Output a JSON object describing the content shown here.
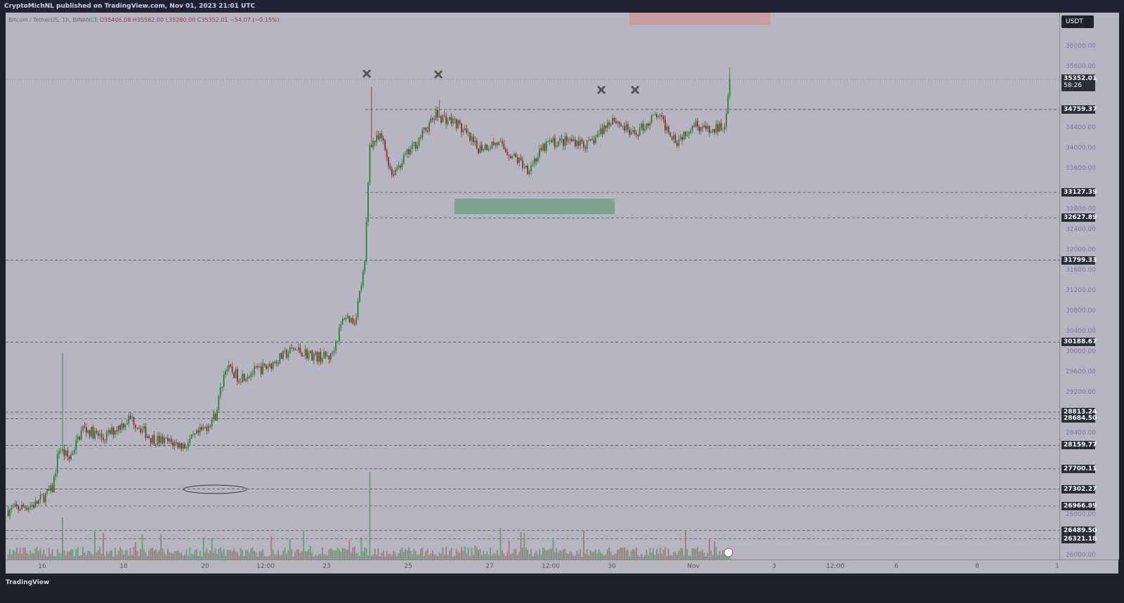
{
  "header": {
    "published": "CryptoMichNL published on TradingView.com, Nov 01, 2023 21:01 UTC"
  },
  "legend": {
    "symbol": "Bitcoin / TetherUS, 1h, BINANCE",
    "open": "O35406.08",
    "high": "H35582.00",
    "low": "L35280.00",
    "close": "C35352.01",
    "change": "−54.07 (−0.15%)"
  },
  "footer": {
    "logo": "TradingView"
  },
  "colors": {
    "up": "#2e7d32",
    "down": "#8b2a2a",
    "background": "#b6b6c2",
    "zone_green": "#6f9f7f",
    "zone_red": "#c99a9f"
  },
  "chart_data": {
    "type": "candlestick",
    "currency_label": "USDT",
    "interval": "1h",
    "ylim": [
      26000,
      36000
    ],
    "y_ticks": [
      "36000.00",
      "35600.00",
      "34400.00",
      "34000.00",
      "33600.00",
      "32800.00",
      "32400.00",
      "32000.00",
      "31600.00",
      "31200.00",
      "30800.00",
      "30400.00",
      "30000.00",
      "29600.00",
      "29200.00",
      "28400.00",
      "26800.00",
      "26000.00"
    ],
    "x_ticks": [
      "16",
      "18",
      "20",
      "12:00",
      "23",
      "25",
      "27",
      "12:00",
      "30",
      "Nov",
      "3",
      "12:00",
      "6",
      "8",
      "1"
    ],
    "last_price": {
      "value": "35352.01",
      "countdown": "58:26"
    },
    "levels": [
      "34759.37",
      "33127.39",
      "32627.89",
      "31799.33",
      "30188.67",
      "28813.24",
      "28684.50",
      "28159.77",
      "27700.11",
      "27302.27",
      "26966.89",
      "26489.50",
      "26321.18"
    ],
    "approx_price_path": [
      [
        "10-15 03",
        26880
      ],
      [
        "10-15 20",
        27000
      ],
      [
        "10-16 06",
        27300
      ],
      [
        "10-16 10",
        28100
      ],
      [
        "10-16 16",
        27900
      ],
      [
        "10-17 00",
        28500
      ],
      [
        "10-17 12",
        28300
      ],
      [
        "10-18 04",
        28700
      ],
      [
        "10-18 16",
        28300
      ],
      [
        "10-19 12",
        28150
      ],
      [
        "10-20 00",
        28500
      ],
      [
        "10-20 06",
        28750
      ],
      [
        "10-20 12",
        29700
      ],
      [
        "10-20 20",
        29500
      ],
      [
        "10-21 12",
        29700
      ],
      [
        "10-22 04",
        30050
      ],
      [
        "10-22 18",
        29900
      ],
      [
        "10-23 02",
        29900
      ],
      [
        "10-23 10",
        30700
      ],
      [
        "10-23 16",
        30600
      ],
      [
        "10-23 22",
        31700
      ],
      [
        "10-24 01",
        34100
      ],
      [
        "10-24 08",
        34200
      ],
      [
        "10-24 14",
        33500
      ],
      [
        "10-25 02",
        34000
      ],
      [
        "10-25 16",
        34650
      ],
      [
        "10-26 04",
        34500
      ],
      [
        "10-26 16",
        34000
      ],
      [
        "10-27 04",
        34100
      ],
      [
        "10-27 22",
        33600
      ],
      [
        "10-28 10",
        34100
      ],
      [
        "10-29 02",
        34150
      ],
      [
        "10-29 10",
        34050
      ],
      [
        "10-30 00",
        34600
      ],
      [
        "10-30 12",
        34250
      ],
      [
        "10-31 02",
        34650
      ],
      [
        "10-31 14",
        34150
      ],
      [
        "11-01 00",
        34500
      ],
      [
        "11-01 10",
        34300
      ],
      [
        "11-01 18",
        34500
      ],
      [
        "11-01 21",
        35352
      ]
    ],
    "markers": [
      "x",
      "x",
      "x",
      "x"
    ]
  }
}
